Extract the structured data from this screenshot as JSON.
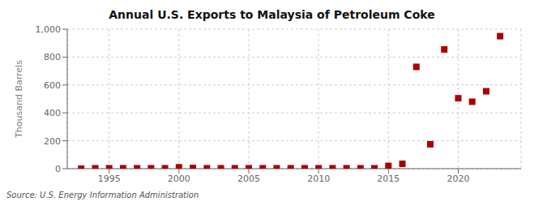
{
  "chart_data": {
    "type": "scatter",
    "title": "Annual U.S. Exports to Malaysia of Petroleum Coke",
    "ylabel": "Thousand Barrels",
    "annotations": [
      "Source: U.S. Energy Information Administration"
    ],
    "x": [
      1993,
      1994,
      1995,
      1996,
      1997,
      1998,
      1999,
      2000,
      2001,
      2002,
      2003,
      2004,
      2005,
      2006,
      2007,
      2008,
      2009,
      2010,
      2011,
      2012,
      2013,
      2014,
      2015,
      2016,
      2017,
      2018,
      2019,
      2020,
      2021,
      2022,
      2023
    ],
    "values": [
      0,
      3,
      3,
      3,
      3,
      3,
      3,
      10,
      5,
      3,
      3,
      3,
      3,
      3,
      3,
      3,
      3,
      3,
      3,
      3,
      3,
      3,
      20,
      35,
      730,
      175,
      855,
      505,
      480,
      555,
      950
    ],
    "color": "#aa0000",
    "marker": "square",
    "xlim": [
      1992,
      2024.5
    ],
    "xticks": [
      1995,
      2000,
      2005,
      2010,
      2015,
      2020
    ],
    "ylim": [
      0,
      1000
    ],
    "yticks": [
      0,
      200,
      400,
      600,
      800,
      {
        "value": 1000,
        "label": "1,000"
      }
    ],
    "grid": true
  }
}
